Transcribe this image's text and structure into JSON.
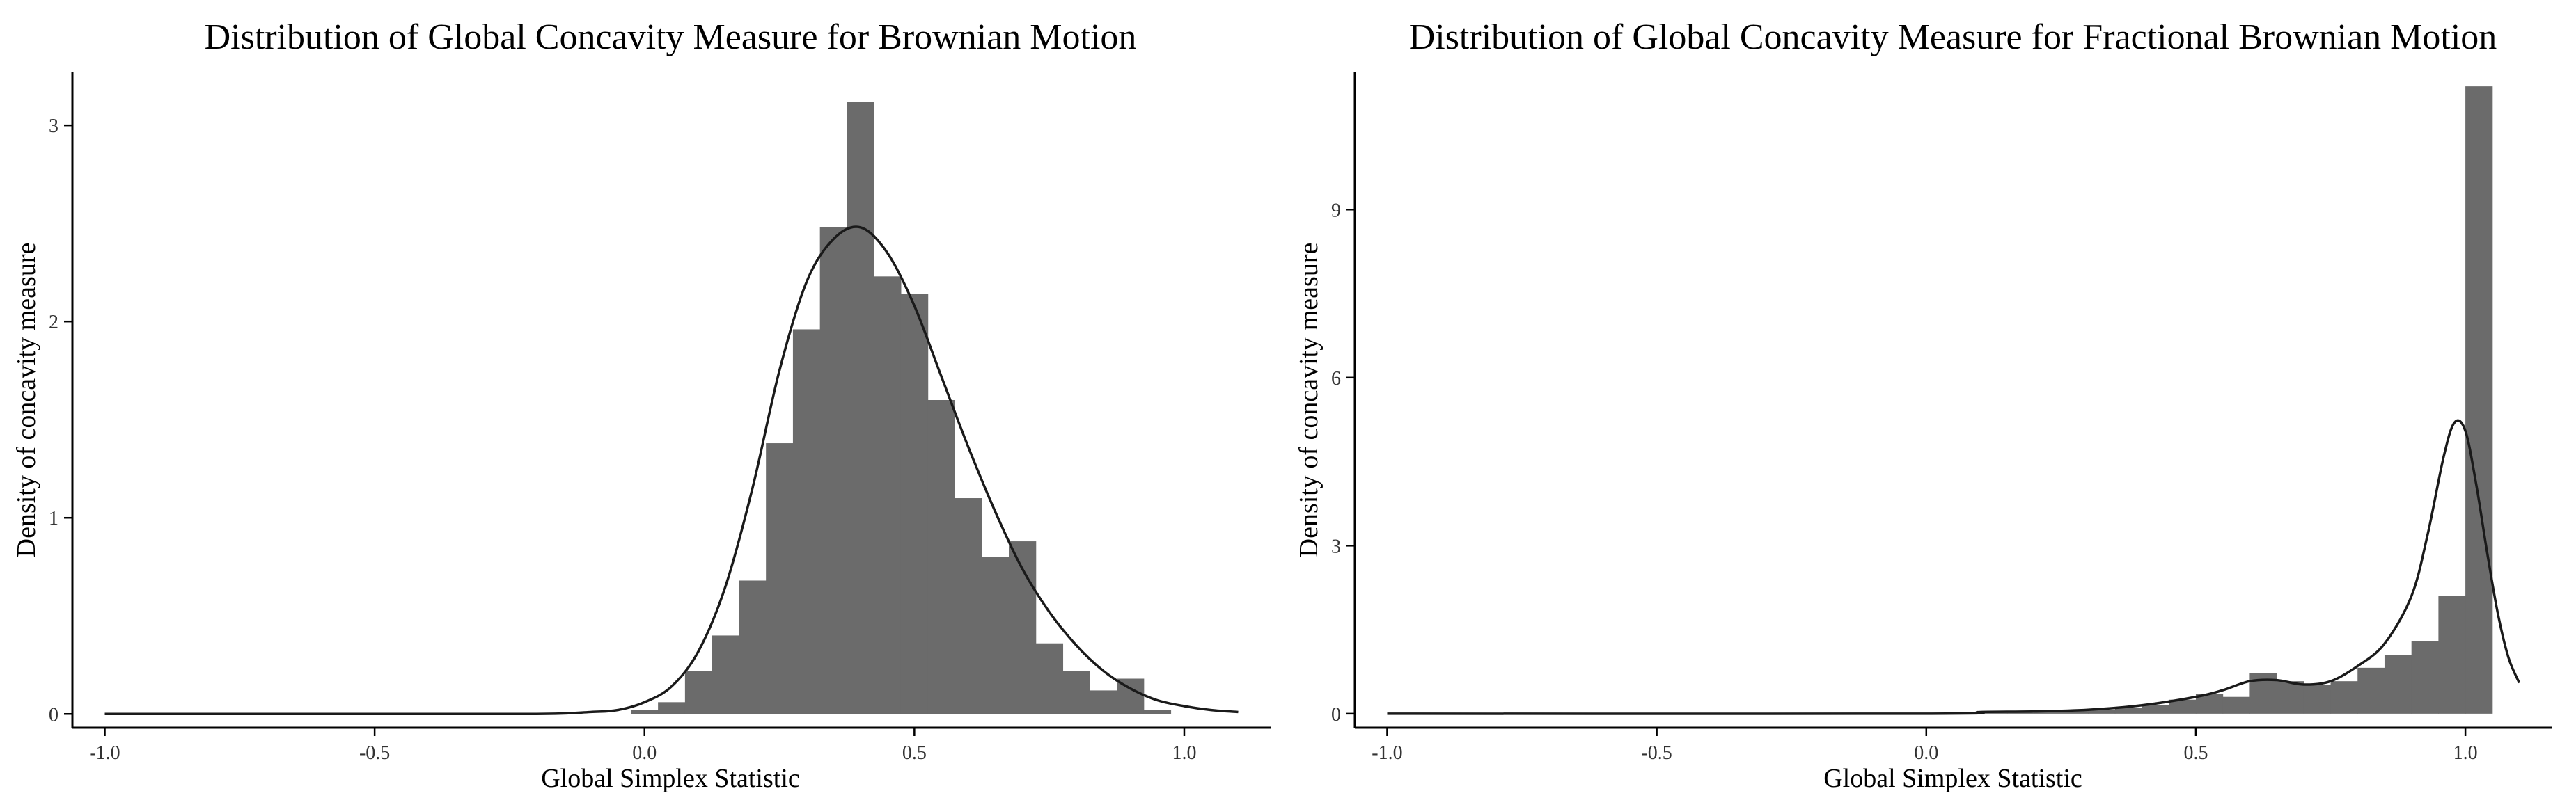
{
  "chart_data": [
    {
      "type": "histogram",
      "title": "Distribution of Global Concavity Measure for Brownian Motion",
      "xlabel": "Global Simplex Statistic",
      "ylabel": "Density of concavity measure",
      "xlim": [
        -1.06,
        1.16
      ],
      "ylim": [
        -0.07,
        3.27
      ],
      "xticks": [
        -1.0,
        -0.5,
        0.0,
        0.5,
        1.0
      ],
      "xtick_labels": [
        "-1.0",
        "-0.5",
        "0.0",
        "0.5",
        "1.0"
      ],
      "yticks": [
        0,
        1,
        2,
        3
      ],
      "ytick_labels": [
        "0",
        "1",
        "2",
        "3"
      ],
      "bin_width": 0.05,
      "bins_x0": [
        -0.025,
        0.025,
        0.075,
        0.125,
        0.175,
        0.225,
        0.275,
        0.325,
        0.375,
        0.425,
        0.475,
        0.525,
        0.575,
        0.625,
        0.675,
        0.725,
        0.775,
        0.825,
        0.875,
        0.925
      ],
      "values": [
        0.02,
        0.06,
        0.22,
        0.4,
        0.68,
        1.38,
        1.96,
        2.48,
        3.12,
        2.23,
        2.14,
        1.6,
        1.1,
        0.8,
        0.88,
        0.36,
        0.22,
        0.12,
        0.18,
        0.02
      ],
      "density_x": [
        -1.0,
        -0.5,
        -0.2,
        -0.1,
        -0.05,
        0.0,
        0.05,
        0.1,
        0.15,
        0.2,
        0.25,
        0.3,
        0.35,
        0.4,
        0.45,
        0.5,
        0.55,
        0.6,
        0.65,
        0.7,
        0.75,
        0.8,
        0.85,
        0.9,
        0.95,
        1.0,
        1.05,
        1.1
      ],
      "density_y": [
        0.0,
        0.0,
        0.0,
        0.01,
        0.02,
        0.06,
        0.14,
        0.32,
        0.65,
        1.15,
        1.75,
        2.2,
        2.42,
        2.48,
        2.35,
        2.08,
        1.72,
        1.36,
        1.03,
        0.74,
        0.52,
        0.35,
        0.22,
        0.13,
        0.07,
        0.04,
        0.02,
        0.01
      ]
    },
    {
      "type": "histogram",
      "title": "Distribution of Global Concavity Measure for Fractional Brownian Motion",
      "xlabel": "Global Simplex Statistic",
      "ylabel": "Density of concavity measure",
      "xlim": [
        -1.06,
        1.16
      ],
      "ylim": [
        -0.25,
        11.45
      ],
      "xticks": [
        -1.0,
        -0.5,
        0.0,
        0.5,
        1.0
      ],
      "xtick_labels": [
        "-1.0",
        "-0.5",
        "0.0",
        "0.5",
        "1.0"
      ],
      "yticks": [
        0,
        3,
        6,
        9
      ],
      "ytick_labels": [
        "0",
        "3",
        "6",
        "9"
      ],
      "bin_width": 0.05,
      "bins_x0": [
        0.1,
        0.15,
        0.2,
        0.25,
        0.3,
        0.35,
        0.4,
        0.45,
        0.5,
        0.55,
        0.6,
        0.65,
        0.7,
        0.75,
        0.8,
        0.85,
        0.9,
        0.95,
        1.0
      ],
      "values": [
        0.02,
        0.02,
        0.03,
        0.05,
        0.07,
        0.1,
        0.15,
        0.25,
        0.35,
        0.3,
        0.72,
        0.58,
        0.52,
        0.58,
        0.82,
        1.05,
        1.3,
        2.1,
        11.2
      ],
      "density_x": [
        -1.0,
        0.0,
        0.1,
        0.2,
        0.3,
        0.4,
        0.5,
        0.55,
        0.6,
        0.65,
        0.7,
        0.75,
        0.8,
        0.85,
        0.9,
        0.93,
        0.96,
        0.98,
        1.0,
        1.02,
        1.04,
        1.06,
        1.08,
        1.1
      ],
      "density_y": [
        0.0,
        0.0,
        0.03,
        0.04,
        0.07,
        0.15,
        0.3,
        0.42,
        0.58,
        0.6,
        0.52,
        0.58,
        0.85,
        1.25,
        2.1,
        3.2,
        4.6,
        5.2,
        5.05,
        4.1,
        2.9,
        1.8,
        1.0,
        0.55
      ]
    }
  ]
}
